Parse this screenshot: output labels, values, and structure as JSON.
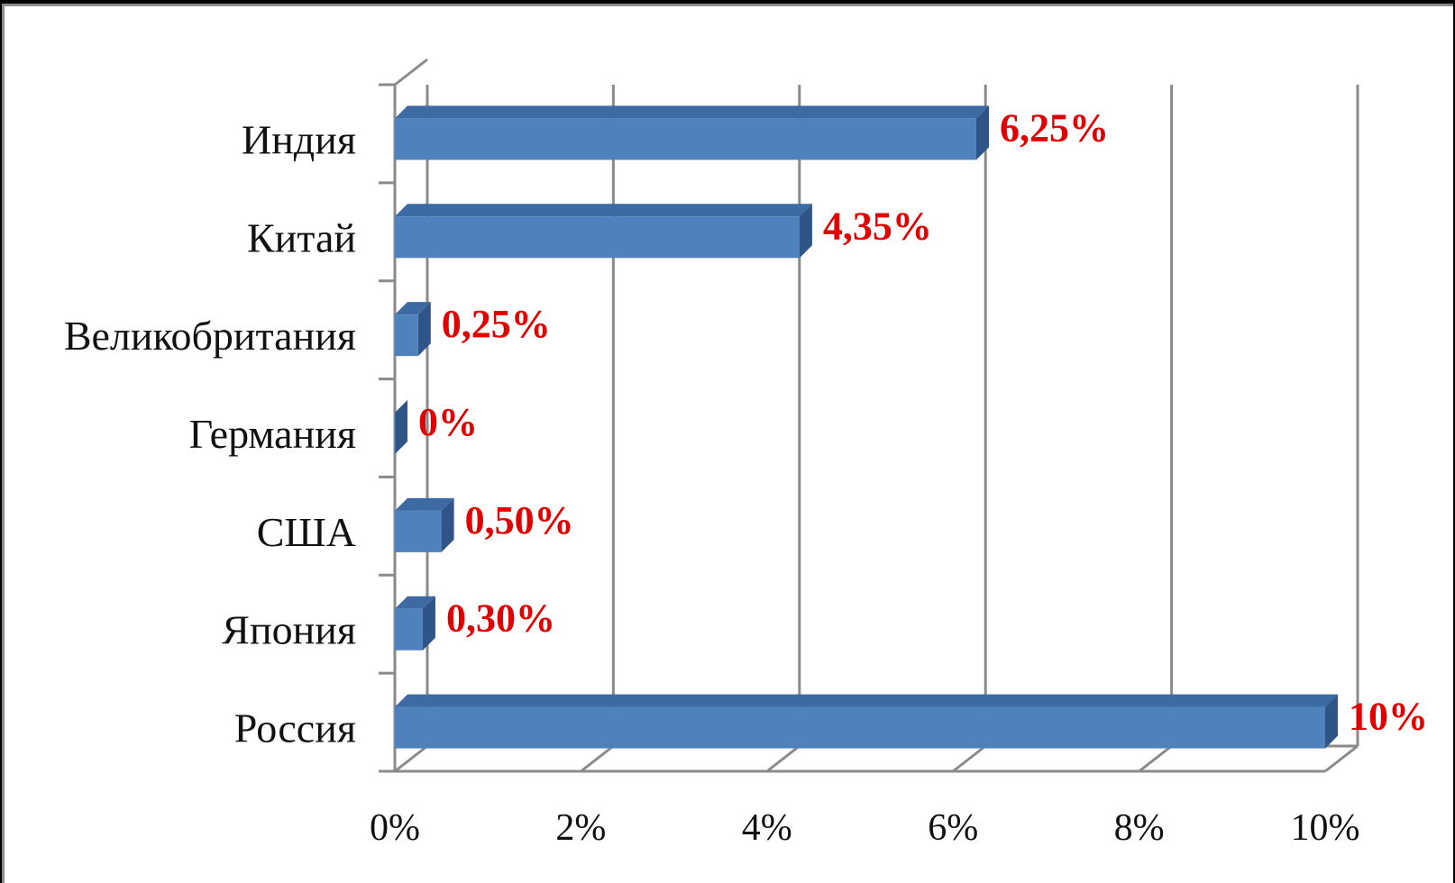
{
  "chart_data": {
    "type": "bar",
    "orientation": "horizontal",
    "title": "",
    "xlabel": "",
    "ylabel": "",
    "categories": [
      "Индия",
      "Китай",
      "Великобритания",
      "Германия",
      "США",
      "Япония",
      "Россия"
    ],
    "values": [
      6.25,
      4.35,
      0.25,
      0,
      0.5,
      0.3,
      10
    ],
    "data_labels": [
      "6,25%",
      "4,35%",
      "0,25%",
      "0%",
      "0,50%",
      "0,30%",
      "10%"
    ],
    "xlim": [
      0,
      10
    ],
    "x_ticks": [
      "0%",
      "2%",
      "4%",
      "6%",
      "8%",
      "10%"
    ],
    "grid": true,
    "legend": "none",
    "bar_color": "#4f81bd",
    "bar_top_color": "#3d6aa3",
    "bar_side_color": "#2f5487",
    "label_color": "#e00000",
    "gridline_color": "#8a8a8a"
  }
}
